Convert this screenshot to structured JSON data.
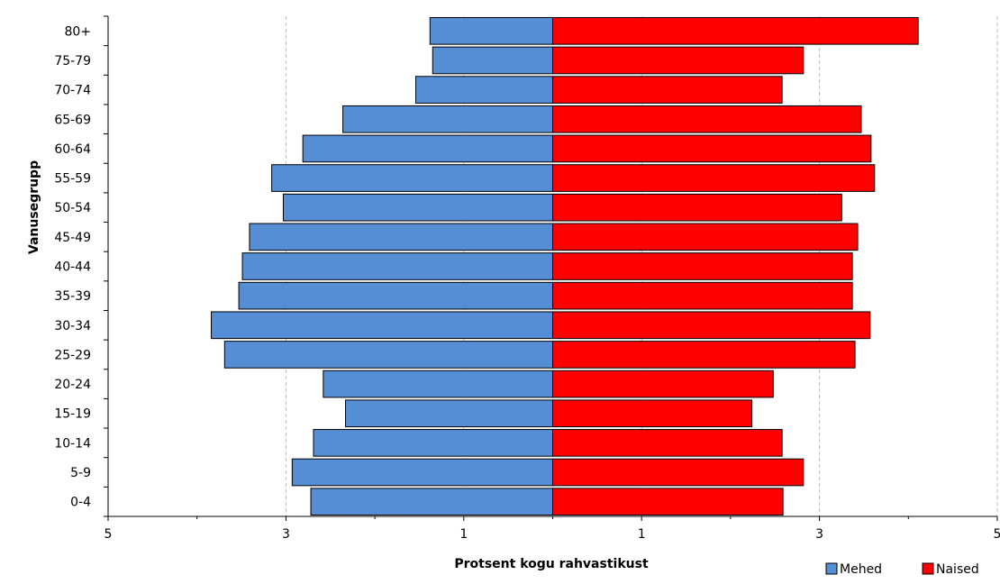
{
  "chart_data": {
    "type": "bar",
    "orientation": "horizontal",
    "categories": [
      "0-4",
      "5-9",
      "10-14",
      "15-19",
      "20-24",
      "25-29",
      "30-34",
      "35-39",
      "40-44",
      "45-49",
      "50-54",
      "55-59",
      "60-64",
      "65-69",
      "70-74",
      "75-79",
      "80+"
    ],
    "series": [
      {
        "name": "Mehed",
        "color": "#558ed5",
        "side": "left",
        "values": [
          2.72,
          2.93,
          2.69,
          2.33,
          2.58,
          3.69,
          3.84,
          3.53,
          3.49,
          3.41,
          3.03,
          3.16,
          2.81,
          2.36,
          1.54,
          1.35,
          1.38
        ]
      },
      {
        "name": "Naised",
        "color": "#ff0000",
        "side": "right",
        "values": [
          2.59,
          2.82,
          2.58,
          2.24,
          2.48,
          3.4,
          3.57,
          3.37,
          3.37,
          3.43,
          3.25,
          3.62,
          3.58,
          3.47,
          2.58,
          2.82,
          4.11
        ]
      }
    ],
    "xlabel": "Protsent kogu rahvastikust",
    "ylabel": "Vanusegrupp",
    "xlim": [
      -5,
      5
    ],
    "x_tick_labels": [
      "5",
      "3",
      "1",
      "1",
      "3",
      "5"
    ],
    "grid": "vertical-dashed",
    "legend_position": "bottom-right"
  }
}
